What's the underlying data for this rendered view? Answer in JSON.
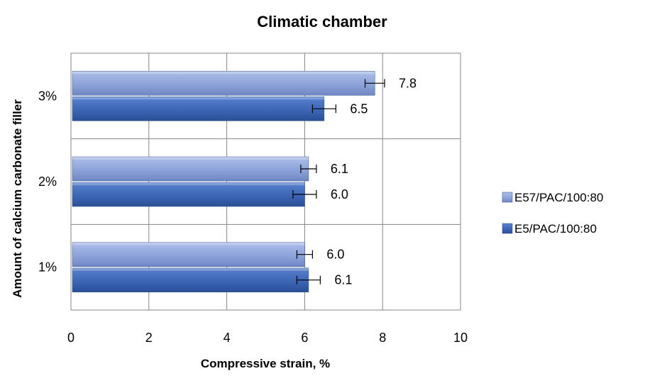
{
  "chart_data": {
    "type": "bar",
    "orientation": "horizontal",
    "title": "Climatic chamber",
    "xlabel": "Compressive strain, %",
    "ylabel": "Amount of calcium carbonate filler",
    "categories": [
      "1%",
      "2%",
      "3%"
    ],
    "xlim": [
      0,
      10
    ],
    "xticks": [
      "0",
      "2",
      "4",
      "6",
      "8",
      "10"
    ],
    "grid": true,
    "legend_position": "right",
    "series": [
      {
        "name": "E57/PAC/100:80",
        "color": "#8fa6dc",
        "values": [
          6.0,
          6.1,
          7.8
        ],
        "labels": [
          "6.0",
          "6.1",
          "7.8"
        ],
        "errors": [
          0.2,
          0.2,
          0.25
        ]
      },
      {
        "name": "E5/PAC/100:80",
        "color": "#3f68b8",
        "values": [
          6.1,
          6.0,
          6.5
        ],
        "labels": [
          "6.1",
          "6.0",
          "6.5"
        ],
        "errors": [
          0.3,
          0.3,
          0.3
        ]
      }
    ]
  }
}
